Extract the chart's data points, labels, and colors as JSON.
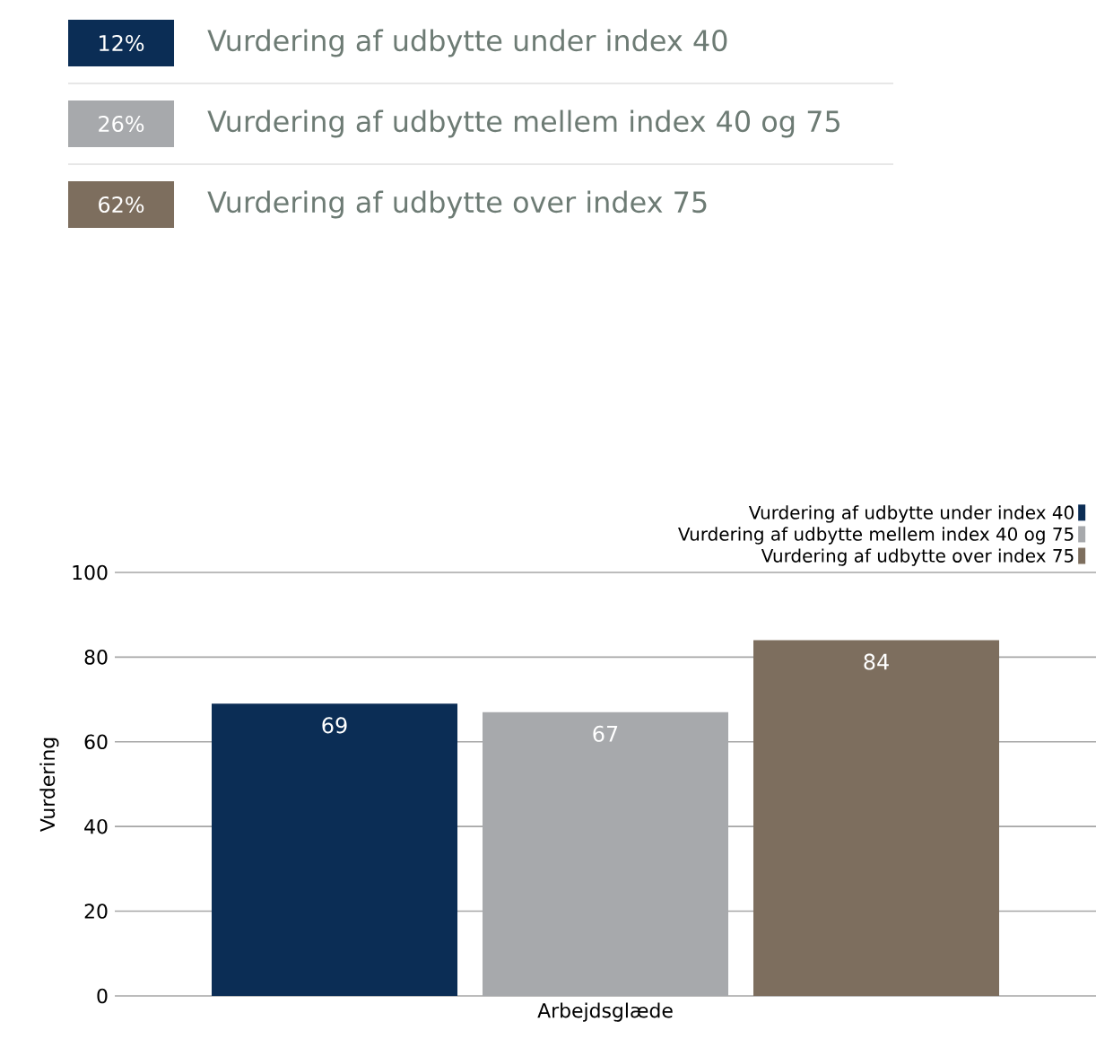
{
  "chart_data": [
    {
      "type": "other",
      "categories": [
        "Vurdering af udbytte under index 40",
        "Vurdering af udbytte mellem index 40 og 75",
        "Vurdering af udbytte over index 75"
      ],
      "colors": [
        "#0b2d55",
        "#a7a9ac",
        "#7d6e5e"
      ],
      "value_labels": [
        "12%",
        "26%",
        "62%"
      ]
    },
    {
      "type": "bar",
      "categories": [
        "Arbejdsglæde"
      ],
      "ylabel": "Vurdering",
      "ylim": [
        0,
        100
      ],
      "yticks": [
        0,
        20,
        40,
        60,
        80,
        100
      ],
      "grid": "y",
      "legend": "top right",
      "data_labels": true,
      "series": [
        {
          "name": "Vurdering af udbytte under index 40",
          "color": "#0b2d55",
          "values": [
            69
          ]
        },
        {
          "name": "Vurdering af udbytte mellem index 40 og 75",
          "color": "#a7a9ac",
          "values": [
            67
          ]
        },
        {
          "name": "Vurdering af udbytte over index 75",
          "color": "#7d6e5e",
          "values": [
            84
          ]
        }
      ]
    }
  ]
}
